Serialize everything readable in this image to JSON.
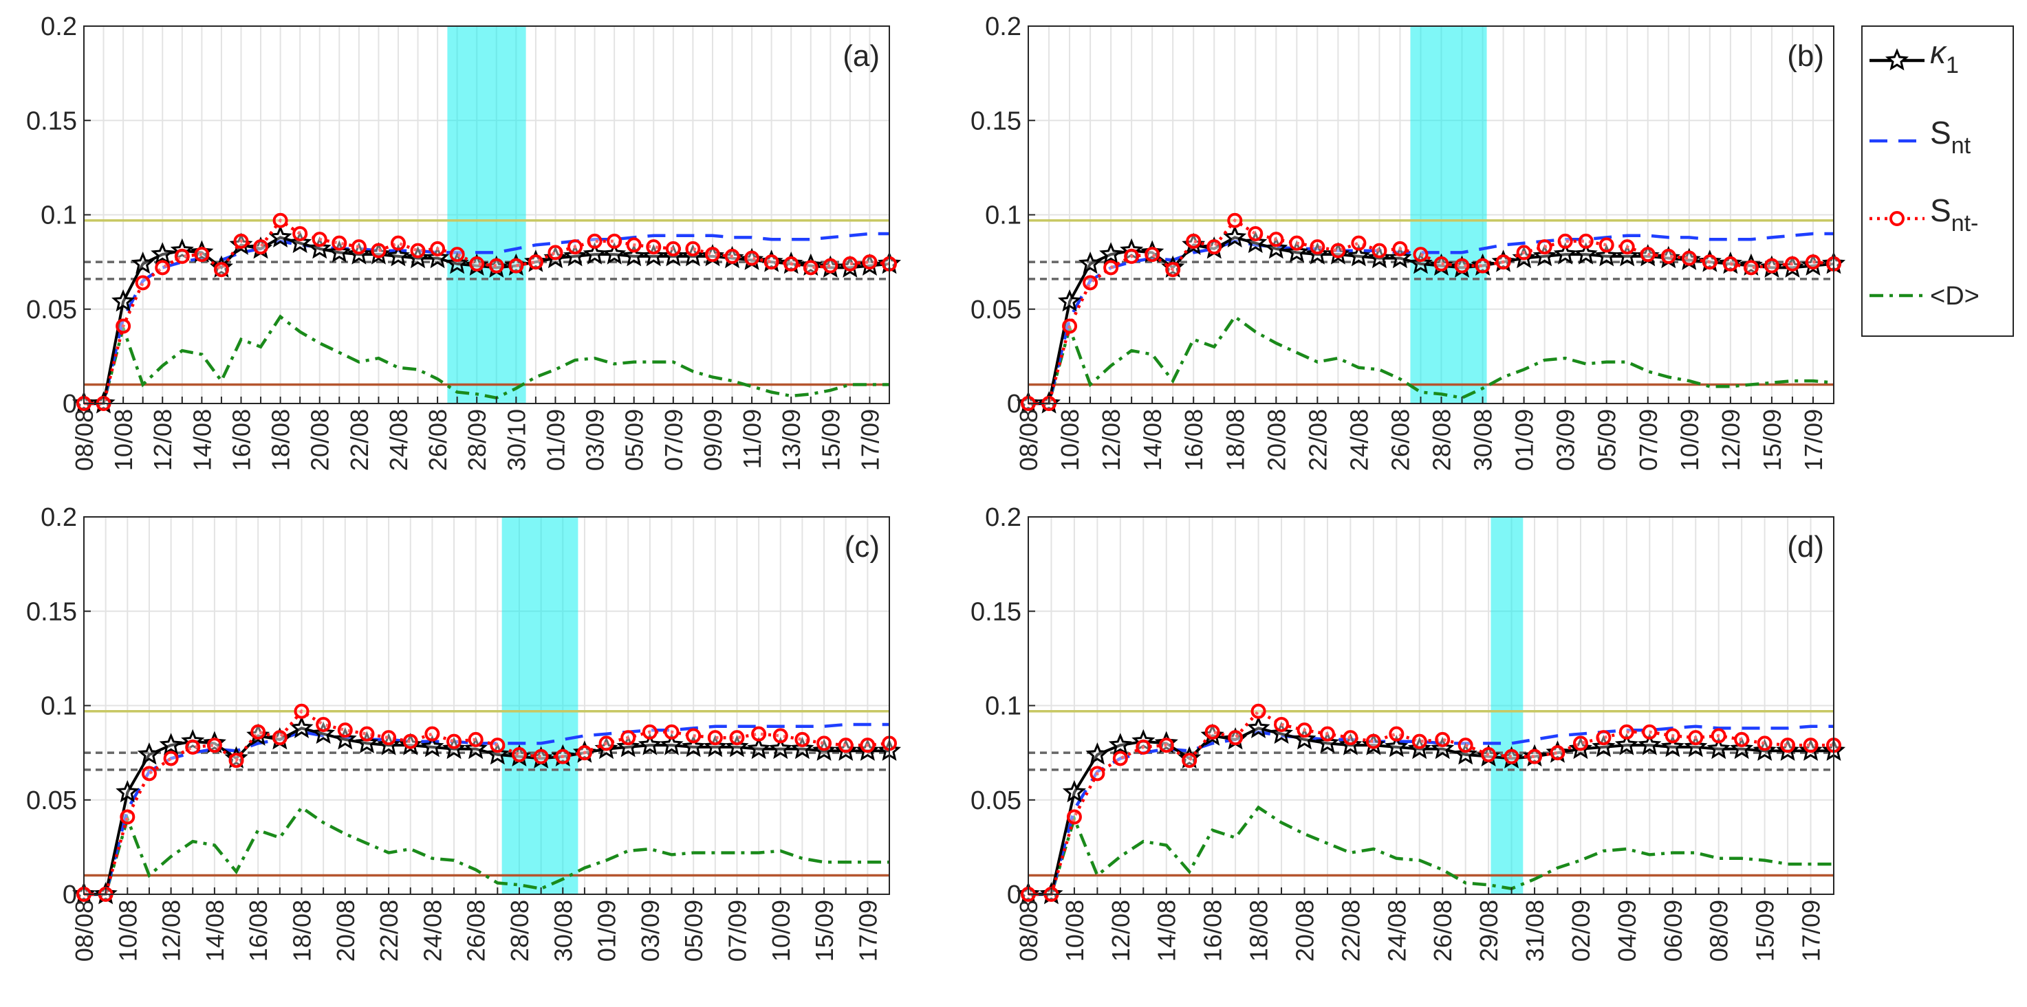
{
  "legend": [
    {
      "name": "κ1",
      "color": "#000000",
      "dash": "",
      "marker": "star"
    },
    {
      "name": "Snt",
      "color": "#1f3fff",
      "dash": "26 16",
      "marker": ""
    },
    {
      "name": "Snt-",
      "color": "#ff0000",
      "dash": "4 7",
      "marker": "circle"
    },
    {
      "name": "<D>",
      "color": "#1a8a1a",
      "dash": "20 9 5 9",
      "marker": ""
    }
  ],
  "chart_data": [
    {
      "type": "line",
      "label": "(a)",
      "grid": true,
      "ylim": [
        0,
        0.2
      ],
      "yticks": [
        0,
        0.05,
        0.1,
        0.15,
        0.2
      ],
      "shaded_range": [
        18.5,
        22.5
      ],
      "reference_lines": [
        {
          "value": 0.097,
          "color": "#c8c864",
          "dash": ""
        },
        {
          "value": 0.075,
          "color": "#666666",
          "dash": "10 7"
        },
        {
          "value": 0.066,
          "color": "#666666",
          "dash": "10 7"
        },
        {
          "value": 0.01,
          "color": "#b5552e",
          "dash": ""
        }
      ],
      "categories": [
        "08/08",
        null,
        "10/08",
        null,
        "12/08",
        null,
        "14/08",
        null,
        "16/08",
        null,
        "18/08",
        null,
        "20/08",
        null,
        "22/08",
        null,
        "24/08",
        null,
        "26/08",
        null,
        "28/09",
        null,
        "30/10",
        null,
        "01/09",
        null,
        "03/09",
        null,
        "05/09",
        null,
        "07/09",
        null,
        "09/09",
        null,
        "11/09",
        null,
        "13/09",
        null,
        "15/09",
        null,
        "17/09",
        null
      ],
      "series": [
        {
          "values": [
            0,
            0,
            0.054,
            0.074,
            0.079,
            0.081,
            0.08,
            0.072,
            0.084,
            0.082,
            0.088,
            0.085,
            0.082,
            0.08,
            0.079,
            0.079,
            0.078,
            0.077,
            0.077,
            0.074,
            0.073,
            0.072,
            0.073,
            0.075,
            0.077,
            0.078,
            0.079,
            0.079,
            0.078,
            0.078,
            0.078,
            0.078,
            0.078,
            0.077,
            0.076,
            0.075,
            0.074,
            0.073,
            0.072,
            0.072,
            0.073,
            0.074
          ]
        },
        {
          "values": [
            0,
            0,
            0.045,
            0.065,
            0.072,
            0.075,
            0.077,
            0.076,
            0.08,
            0.082,
            0.086,
            0.084,
            0.083,
            0.082,
            0.082,
            0.081,
            0.081,
            0.081,
            0.08,
            0.08,
            0.08,
            0.08,
            0.082,
            0.084,
            0.085,
            0.086,
            0.087,
            0.087,
            0.088,
            0.089,
            0.089,
            0.089,
            0.089,
            0.088,
            0.088,
            0.087,
            0.087,
            0.087,
            0.088,
            0.089,
            0.09,
            0.09
          ]
        },
        {
          "values": [
            0,
            0,
            0.041,
            0.064,
            0.072,
            0.078,
            0.079,
            0.071,
            0.086,
            0.083,
            0.097,
            0.09,
            0.087,
            0.085,
            0.083,
            0.081,
            0.085,
            0.081,
            0.082,
            0.079,
            0.074,
            0.073,
            0.073,
            0.075,
            0.08,
            0.083,
            0.086,
            0.086,
            0.084,
            0.083,
            0.082,
            0.082,
            0.079,
            0.078,
            0.077,
            0.075,
            0.074,
            0.072,
            0.073,
            0.074,
            0.075,
            0.074
          ]
        },
        {
          "values": [
            0,
            0,
            0.04,
            0.01,
            0.02,
            0.028,
            0.026,
            0.012,
            0.034,
            0.03,
            0.046,
            0.038,
            0.032,
            0.027,
            0.022,
            0.024,
            0.019,
            0.018,
            0.013,
            0.006,
            0.005,
            0.003,
            0.008,
            0.014,
            0.018,
            0.023,
            0.024,
            0.021,
            0.022,
            0.022,
            0.022,
            0.017,
            0.014,
            0.012,
            0.009,
            0.006,
            0.004,
            0.005,
            0.007,
            0.01,
            0.01,
            0.01
          ]
        }
      ]
    },
    {
      "type": "line",
      "label": "(b)",
      "grid": true,
      "ylim": [
        0,
        0.2
      ],
      "yticks": [
        0,
        0.05,
        0.1,
        0.15,
        0.2
      ],
      "shaded_range": [
        18.5,
        22.2
      ],
      "reference_lines": [
        {
          "value": 0.097,
          "color": "#c8c864",
          "dash": ""
        },
        {
          "value": 0.075,
          "color": "#666666",
          "dash": "10 7"
        },
        {
          "value": 0.066,
          "color": "#666666",
          "dash": "10 7"
        },
        {
          "value": 0.01,
          "color": "#b5552e",
          "dash": ""
        }
      ],
      "categories": [
        "08/08",
        null,
        "10/08",
        null,
        "12/08",
        null,
        "14/08",
        null,
        "16/08",
        null,
        "18/08",
        null,
        "20/08",
        null,
        "22/08",
        null,
        "24/08",
        null,
        "26/08",
        null,
        "28/08",
        null,
        "30/08",
        null,
        "01/09",
        null,
        "03/09",
        null,
        "05/09",
        null,
        "07/09",
        null,
        "10/09",
        null,
        "12/09",
        null,
        "15/09",
        null,
        "17/09",
        null
      ],
      "series": [
        {
          "values": [
            0,
            0,
            0.054,
            0.074,
            0.079,
            0.081,
            0.08,
            0.072,
            0.084,
            0.082,
            0.088,
            0.085,
            0.082,
            0.08,
            0.079,
            0.079,
            0.078,
            0.077,
            0.077,
            0.074,
            0.073,
            0.072,
            0.073,
            0.075,
            0.077,
            0.078,
            0.079,
            0.079,
            0.078,
            0.078,
            0.078,
            0.077,
            0.076,
            0.075,
            0.074,
            0.073,
            0.072,
            0.072,
            0.073,
            0.074
          ]
        },
        {
          "values": [
            0,
            0,
            0.045,
            0.065,
            0.072,
            0.075,
            0.077,
            0.076,
            0.08,
            0.082,
            0.086,
            0.084,
            0.083,
            0.082,
            0.082,
            0.081,
            0.081,
            0.081,
            0.08,
            0.08,
            0.08,
            0.08,
            0.082,
            0.084,
            0.085,
            0.086,
            0.087,
            0.087,
            0.088,
            0.089,
            0.089,
            0.088,
            0.088,
            0.087,
            0.087,
            0.087,
            0.088,
            0.089,
            0.09,
            0.09
          ]
        },
        {
          "values": [
            0,
            0,
            0.041,
            0.064,
            0.072,
            0.078,
            0.079,
            0.071,
            0.086,
            0.083,
            0.097,
            0.09,
            0.087,
            0.085,
            0.083,
            0.081,
            0.085,
            0.081,
            0.082,
            0.079,
            0.074,
            0.073,
            0.073,
            0.075,
            0.08,
            0.083,
            0.086,
            0.086,
            0.084,
            0.083,
            0.079,
            0.078,
            0.077,
            0.075,
            0.074,
            0.072,
            0.073,
            0.074,
            0.075,
            0.074
          ]
        },
        {
          "values": [
            0,
            0,
            0.04,
            0.01,
            0.02,
            0.028,
            0.026,
            0.012,
            0.034,
            0.03,
            0.046,
            0.038,
            0.032,
            0.027,
            0.022,
            0.024,
            0.019,
            0.018,
            0.013,
            0.006,
            0.005,
            0.003,
            0.008,
            0.014,
            0.018,
            0.023,
            0.024,
            0.021,
            0.022,
            0.022,
            0.017,
            0.014,
            0.012,
            0.009,
            0.009,
            0.01,
            0.011,
            0.012,
            0.012,
            0.011
          ]
        }
      ]
    },
    {
      "type": "line",
      "label": "(c)",
      "grid": true,
      "ylim": [
        0,
        0.2
      ],
      "yticks": [
        0,
        0.05,
        0.1,
        0.15,
        0.2
      ],
      "shaded_range": [
        19.2,
        22.7
      ],
      "reference_lines": [
        {
          "value": 0.097,
          "color": "#c8c864",
          "dash": ""
        },
        {
          "value": 0.075,
          "color": "#666666",
          "dash": "10 7"
        },
        {
          "value": 0.066,
          "color": "#666666",
          "dash": "10 7"
        },
        {
          "value": 0.01,
          "color": "#b5552e",
          "dash": ""
        }
      ],
      "categories": [
        "08/08",
        null,
        "10/08",
        null,
        "12/08",
        null,
        "14/08",
        null,
        "16/08",
        null,
        "18/08",
        null,
        "20/08",
        null,
        "22/08",
        null,
        "24/08",
        null,
        "26/08",
        null,
        "28/08",
        null,
        "30/08",
        null,
        "01/09",
        null,
        "03/09",
        null,
        "05/09",
        null,
        "07/09",
        null,
        "10/09",
        null,
        "15/09",
        null,
        "17/09",
        null
      ],
      "series": [
        {
          "values": [
            0,
            0,
            0.054,
            0.074,
            0.079,
            0.081,
            0.08,
            0.072,
            0.084,
            0.082,
            0.088,
            0.085,
            0.082,
            0.08,
            0.079,
            0.079,
            0.078,
            0.077,
            0.077,
            0.074,
            0.073,
            0.072,
            0.073,
            0.075,
            0.077,
            0.078,
            0.079,
            0.079,
            0.078,
            0.078,
            0.078,
            0.077,
            0.077,
            0.077,
            0.076,
            0.076,
            0.076,
            0.076
          ]
        },
        {
          "values": [
            0,
            0,
            0.045,
            0.065,
            0.072,
            0.075,
            0.077,
            0.076,
            0.08,
            0.082,
            0.086,
            0.084,
            0.083,
            0.082,
            0.082,
            0.081,
            0.081,
            0.081,
            0.08,
            0.08,
            0.08,
            0.08,
            0.082,
            0.084,
            0.085,
            0.086,
            0.087,
            0.087,
            0.088,
            0.089,
            0.089,
            0.089,
            0.089,
            0.089,
            0.089,
            0.09,
            0.09,
            0.09
          ]
        },
        {
          "values": [
            0,
            0,
            0.041,
            0.064,
            0.072,
            0.078,
            0.079,
            0.071,
            0.086,
            0.083,
            0.097,
            0.09,
            0.087,
            0.085,
            0.083,
            0.081,
            0.085,
            0.081,
            0.082,
            0.079,
            0.074,
            0.073,
            0.073,
            0.075,
            0.08,
            0.083,
            0.086,
            0.086,
            0.084,
            0.083,
            0.083,
            0.085,
            0.084,
            0.082,
            0.08,
            0.079,
            0.079,
            0.08
          ]
        },
        {
          "values": [
            0,
            0,
            0.04,
            0.01,
            0.02,
            0.028,
            0.026,
            0.012,
            0.034,
            0.03,
            0.046,
            0.038,
            0.032,
            0.027,
            0.022,
            0.024,
            0.019,
            0.018,
            0.013,
            0.006,
            0.005,
            0.003,
            0.008,
            0.014,
            0.018,
            0.023,
            0.024,
            0.021,
            0.022,
            0.022,
            0.022,
            0.022,
            0.023,
            0.019,
            0.017,
            0.017,
            0.017,
            0.017
          ]
        }
      ]
    },
    {
      "type": "line",
      "label": "(d)",
      "grid": true,
      "ylim": [
        0,
        0.2
      ],
      "yticks": [
        0,
        0.05,
        0.1,
        0.15,
        0.2
      ],
      "shaded_range": [
        20.1,
        21.5
      ],
      "reference_lines": [
        {
          "value": 0.097,
          "color": "#c8c864",
          "dash": ""
        },
        {
          "value": 0.075,
          "color": "#666666",
          "dash": "10 7"
        },
        {
          "value": 0.066,
          "color": "#666666",
          "dash": "10 7"
        },
        {
          "value": 0.01,
          "color": "#b5552e",
          "dash": ""
        }
      ],
      "categories": [
        "08/08",
        null,
        "10/08",
        null,
        "12/08",
        null,
        "14/08",
        null,
        "16/08",
        null,
        "18/08",
        null,
        "20/08",
        null,
        "22/08",
        null,
        "24/08",
        null,
        "26/08",
        null,
        "29/08",
        null,
        "31/08",
        null,
        "02/09",
        null,
        "04/09",
        null,
        "06/09",
        null,
        "08/09",
        null,
        "15/09",
        null,
        "17/09",
        null
      ],
      "series": [
        {
          "values": [
            0,
            0,
            0.054,
            0.074,
            0.079,
            0.081,
            0.08,
            0.072,
            0.084,
            0.082,
            0.088,
            0.085,
            0.082,
            0.08,
            0.079,
            0.079,
            0.078,
            0.077,
            0.077,
            0.074,
            0.073,
            0.072,
            0.073,
            0.075,
            0.077,
            0.078,
            0.079,
            0.079,
            0.078,
            0.078,
            0.077,
            0.077,
            0.076,
            0.076,
            0.076,
            0.076
          ]
        },
        {
          "values": [
            0,
            0,
            0.045,
            0.065,
            0.072,
            0.075,
            0.077,
            0.076,
            0.08,
            0.082,
            0.086,
            0.084,
            0.083,
            0.082,
            0.082,
            0.081,
            0.081,
            0.081,
            0.08,
            0.08,
            0.08,
            0.08,
            0.082,
            0.084,
            0.085,
            0.086,
            0.087,
            0.087,
            0.088,
            0.089,
            0.088,
            0.088,
            0.088,
            0.088,
            0.089,
            0.089
          ]
        },
        {
          "values": [
            0,
            0,
            0.041,
            0.064,
            0.072,
            0.078,
            0.079,
            0.071,
            0.086,
            0.083,
            0.097,
            0.09,
            0.087,
            0.085,
            0.083,
            0.081,
            0.085,
            0.081,
            0.082,
            0.079,
            0.074,
            0.073,
            0.073,
            0.075,
            0.08,
            0.083,
            0.086,
            0.086,
            0.084,
            0.083,
            0.084,
            0.082,
            0.08,
            0.079,
            0.079,
            0.079
          ]
        },
        {
          "values": [
            0,
            0,
            0.04,
            0.01,
            0.02,
            0.028,
            0.026,
            0.012,
            0.034,
            0.03,
            0.046,
            0.038,
            0.032,
            0.027,
            0.022,
            0.024,
            0.019,
            0.018,
            0.013,
            0.006,
            0.005,
            0.003,
            0.008,
            0.014,
            0.018,
            0.023,
            0.024,
            0.021,
            0.022,
            0.022,
            0.019,
            0.019,
            0.018,
            0.016,
            0.016,
            0.016
          ]
        }
      ]
    }
  ]
}
